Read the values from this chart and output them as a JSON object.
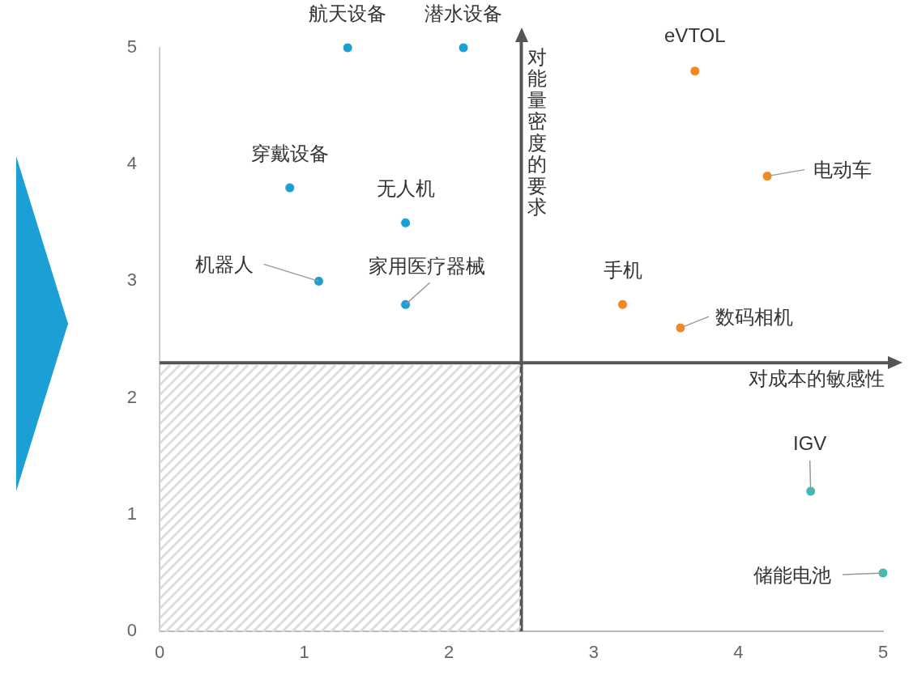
{
  "chart_data": {
    "type": "scatter",
    "series": [
      {
        "color": "#1b9fd5",
        "x": [
          1.3,
          2.1,
          0.9,
          1.7,
          1.1,
          1.7
        ],
        "values": [
          5,
          5,
          3.8,
          3.5,
          3.0,
          2.8
        ]
      },
      {
        "color": "#f5891f",
        "x": [
          3.7,
          4.2,
          3.2,
          3.6
        ],
        "values": [
          4.8,
          3.9,
          2.8,
          2.6
        ]
      },
      {
        "color": "#3cbcb5",
        "x": [
          4.5,
          5
        ],
        "values": [
          1.2,
          0.5
        ]
      }
    ],
    "xlim": [
      0,
      5
    ],
    "ylim": [
      0,
      5
    ],
    "xticks": [
      0,
      1,
      2,
      3,
      4,
      5
    ],
    "yticks": [
      0,
      1,
      2,
      3,
      4,
      5
    ],
    "grid": false,
    "legend": false,
    "marker": "circle",
    "ref_lines": [
      {
        "axis": "x",
        "value": 2.5,
        "label": "对能量密度的要求",
        "color": "#555555"
      },
      {
        "axis": "y",
        "value": 2.3,
        "label": "对成本的敏感性",
        "color": "#555555"
      }
    ],
    "annotations": [
      {
        "text": "航天设备",
        "x": 1.3,
        "y": 5
      },
      {
        "text": "潜水设备",
        "x": 2.1,
        "y": 5
      },
      {
        "text": "eVTOL",
        "x": 3.7,
        "y": 4.8
      },
      {
        "text": "电动车",
        "x": 4.2,
        "y": 3.9
      },
      {
        "text": "穿戴设备",
        "x": 0.9,
        "y": 3.8
      },
      {
        "text": "无人机",
        "x": 1.7,
        "y": 3.5
      },
      {
        "text": "机器人",
        "x": 1.1,
        "y": 3.0
      },
      {
        "text": "家用医疗器械",
        "x": 1.7,
        "y": 2.8
      },
      {
        "text": "手机",
        "x": 3.2,
        "y": 2.8
      },
      {
        "text": "数码相机",
        "x": 3.6,
        "y": 2.6
      },
      {
        "text": "IGV",
        "x": 4.5,
        "y": 1.2
      },
      {
        "text": "储能电池",
        "x": 5,
        "y": 0.5
      }
    ]
  }
}
